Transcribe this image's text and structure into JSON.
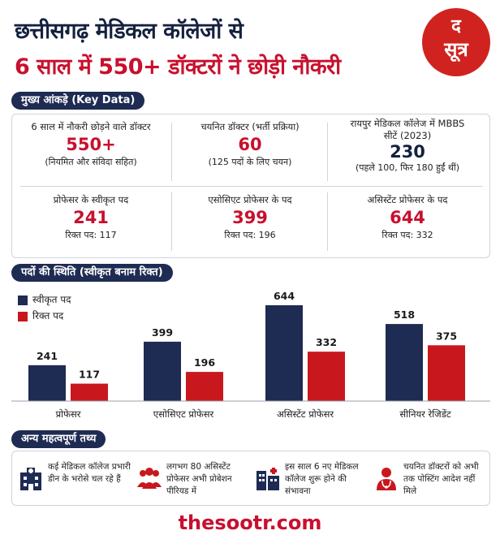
{
  "header": {
    "title_line1": "छत्तीसगढ़ मेडिकल कॉलेजों से",
    "title_line2": "6 साल में 550+ डॉक्टरों ने छोड़ी नौकरी",
    "logo_top": "द",
    "logo_bottom": "सूत्र"
  },
  "key_data": {
    "heading": "मुख्य आंकड़े (Key Data)",
    "cells": [
      {
        "label": "6 साल में नौकरी छोड़ने वाले डॉक्टर",
        "value": "550+",
        "sub": "(नियमित और संविदा सहित)"
      },
      {
        "label": "चयनित डॉक्टर (भर्ती प्रक्रिया)",
        "value": "60",
        "sub": "(125 पदों के लिए चयन)"
      },
      {
        "label": "रायपुर मेडिकल कॉलेज में MBBS सीटें (2023)",
        "value": "230",
        "sub": "(पहले 100, फिर 180 हुईं थीं)"
      },
      {
        "label": "प्रोफेसर के स्वीकृत पद",
        "value": "241",
        "sub": "रिक्त पद: 117"
      },
      {
        "label": "एसोसिएट प्रोफेसर के पद",
        "value": "399",
        "sub": "रिक्त पद: 196"
      },
      {
        "label": "असिस्टेंट प्रोफेसर के पद",
        "value": "644",
        "sub": "रिक्त पद: 332"
      }
    ]
  },
  "chart_section": {
    "heading": "पदों की स्थिति (स्वीकृत बनाम रिक्त)"
  },
  "chart_data": {
    "type": "bar",
    "categories": [
      "प्रोफेसर",
      "एसोसिएट प्रोफेसर",
      "असिस्टेंट प्रोफेसर",
      "सीनियर रेजिडेंट"
    ],
    "series": [
      {
        "name": "स्वीकृत पद",
        "values": [
          241,
          399,
          644,
          518
        ],
        "color": "#1e2b52"
      },
      {
        "name": "रिक्त पद",
        "values": [
          117,
          196,
          332,
          375
        ],
        "color": "#c8181e"
      }
    ],
    "ylim": [
      0,
      644
    ],
    "legend": "top-left",
    "grid": false
  },
  "facts": {
    "heading": "अन्य महत्वपूर्ण तथ्य",
    "items": [
      {
        "icon": "hospital-icon",
        "text": "कई मेडिकल कॉलेज प्रभारी डीन के भरोसे चल रहे हैं"
      },
      {
        "icon": "group-icon",
        "text": "लगभग 80 असिस्टेंट प्रोफेसर अभी प्रोबेशन पीरियड में"
      },
      {
        "icon": "building-icon",
        "text": "इस साल 6 नए मेडिकल कॉलेज शुरू होने की संभावना"
      },
      {
        "icon": "doctor-icon",
        "text": "चयनित डॉक्टरों को अभी तक पोस्टिंग आदेश नहीं मिले"
      }
    ]
  },
  "footer": {
    "site": "thesootr.com"
  },
  "colors": {
    "navy": "#1e2b52",
    "red": "#c8102e"
  }
}
